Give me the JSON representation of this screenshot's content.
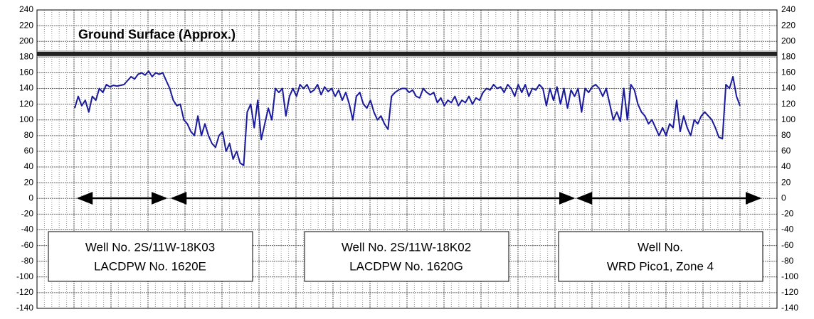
{
  "chart_data": {
    "type": "line",
    "color": "#1a1a9c",
    "ylim": [
      -140,
      240
    ],
    "yticks": [
      -140,
      -120,
      -100,
      -80,
      -60,
      -40,
      -20,
      0,
      20,
      40,
      60,
      80,
      100,
      120,
      140,
      160,
      180,
      200,
      220,
      240
    ],
    "grid": true,
    "ground_surface": {
      "label": "Ground Surface (Approx.)",
      "value": 184
    },
    "well_labels": [
      [
        "Well No.  2S/11W-18K03",
        "LACDPW No. 1620E"
      ],
      [
        "Well No.  2S/11W-18K02",
        "LACDPW No. 1620G"
      ],
      [
        "Well No.",
        "WRD Pico1, Zone 4"
      ]
    ],
    "values": [
      115,
      130,
      118,
      125,
      110,
      130,
      125,
      140,
      135,
      145,
      142,
      144,
      143,
      144,
      145,
      150,
      155,
      152,
      158,
      160,
      157,
      162,
      155,
      160,
      158,
      160,
      150,
      140,
      125,
      118,
      120,
      100,
      95,
      85,
      80,
      105,
      80,
      95,
      80,
      70,
      65,
      80,
      85,
      60,
      70,
      50,
      60,
      45,
      42,
      110,
      120,
      90,
      125,
      75,
      95,
      115,
      100,
      140,
      135,
      140,
      105,
      130,
      140,
      130,
      145,
      140,
      145,
      135,
      138,
      145,
      132,
      142,
      136,
      140,
      130,
      138,
      125,
      135,
      120,
      100,
      130,
      135,
      120,
      115,
      125,
      110,
      100,
      105,
      95,
      88,
      130,
      135,
      138,
      140,
      140,
      135,
      138,
      130,
      128,
      140,
      135,
      132,
      135,
      122,
      128,
      118,
      125,
      122,
      130,
      118,
      125,
      122,
      130,
      120,
      128,
      125,
      135,
      140,
      138,
      145,
      140,
      142,
      135,
      145,
      140,
      130,
      145,
      135,
      145,
      130,
      140,
      138,
      145,
      140,
      118,
      140,
      125,
      142,
      120,
      140,
      115,
      138,
      130,
      140,
      110,
      140,
      135,
      142,
      145,
      140,
      130,
      140,
      120,
      100,
      110,
      98,
      140,
      100,
      145,
      138,
      120,
      110,
      105,
      95,
      100,
      90,
      80,
      90,
      80,
      95,
      90,
      125,
      85,
      105,
      90,
      80,
      100,
      95,
      105,
      110,
      105,
      100,
      90,
      78,
      76,
      145,
      140,
      155,
      130,
      118
    ]
  }
}
